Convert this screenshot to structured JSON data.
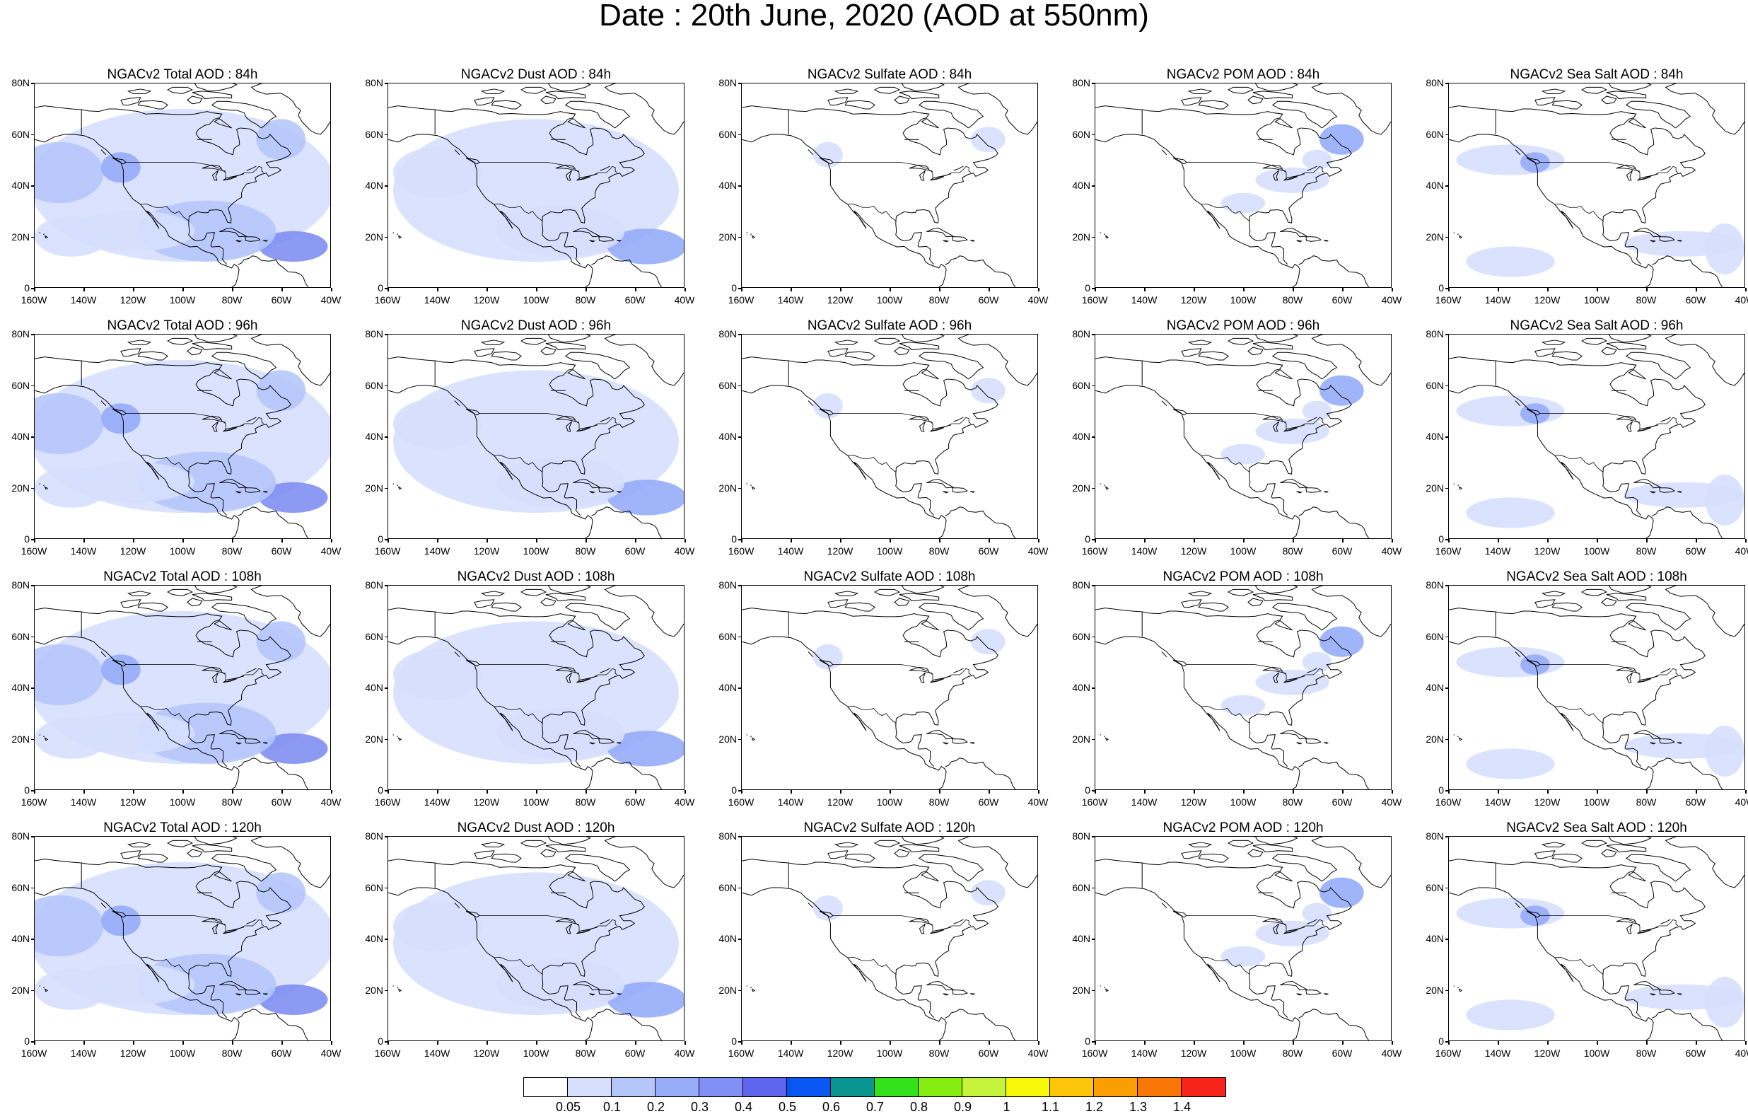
{
  "title": "Date : 20th June, 2020 (AOD at 550nm)",
  "rows": [
    {
      "panels": [
        {
          "title": "NGACv2 Total AOD : 84h",
          "species": "total"
        },
        {
          "title": "NGACv2 Dust AOD : 84h",
          "species": "dust"
        },
        {
          "title": "NGACv2 Sulfate AOD : 84h",
          "species": "sulfate"
        },
        {
          "title": "NGACv2 POM AOD : 84h",
          "species": "pom"
        },
        {
          "title": "NGACv2 Sea Salt AOD : 84h",
          "species": "seasalt"
        }
      ]
    },
    {
      "panels": [
        {
          "title": "NGACv2 Total AOD : 96h",
          "species": "total"
        },
        {
          "title": "NGACv2 Dust AOD : 96h",
          "species": "dust"
        },
        {
          "title": "NGACv2 Sulfate AOD : 96h",
          "species": "sulfate"
        },
        {
          "title": "NGACv2 POM AOD : 96h",
          "species": "pom"
        },
        {
          "title": "NGACv2 Sea Salt AOD : 96h",
          "species": "seasalt"
        }
      ]
    },
    {
      "panels": [
        {
          "title": "NGACv2 Total AOD : 108h",
          "species": "total"
        },
        {
          "title": "NGACv2 Dust AOD : 108h",
          "species": "dust"
        },
        {
          "title": "NGACv2 Sulfate AOD : 108h",
          "species": "sulfate"
        },
        {
          "title": "NGACv2 POM AOD : 108h",
          "species": "pom"
        },
        {
          "title": "NGACv2 Sea Salt AOD : 108h",
          "species": "seasalt"
        }
      ]
    },
    {
      "panels": [
        {
          "title": "NGACv2 Total AOD : 120h",
          "species": "total"
        },
        {
          "title": "NGACv2 Dust AOD : 120h",
          "species": "dust"
        },
        {
          "title": "NGACv2 Sulfate AOD : 120h",
          "species": "sulfate"
        },
        {
          "title": "NGACv2 POM AOD : 120h",
          "species": "pom"
        },
        {
          "title": "NGACv2 Sea Salt  AOD : 120h",
          "species": "seasalt"
        }
      ]
    }
  ],
  "y_ticks": [
    "80N",
    "60N",
    "40N",
    "20N",
    "0"
  ],
  "x_ticks": [
    "160W",
    "140W",
    "120W",
    "100W",
    "80W",
    "60W",
    "40W"
  ],
  "map_extent": {
    "lon": [
      -160,
      -40
    ],
    "lat": [
      0,
      80
    ]
  },
  "colorbar": {
    "labels": [
      "0.05",
      "0.1",
      "0.2",
      "0.3",
      "0.4",
      "0.5",
      "0.6",
      "0.7",
      "0.8",
      "0.9",
      "1",
      "1.1",
      "1.2",
      "1.3",
      "1.4"
    ],
    "colors": [
      "#ffffff",
      "#d6dffd",
      "#b5c6fb",
      "#96acf9",
      "#7f8ff3",
      "#5e64eb",
      "#0a56f2",
      "#0a9590",
      "#33e21c",
      "#85ee10",
      "#c4f53b",
      "#f8f80a",
      "#fcc508",
      "#fb9e03",
      "#f87705",
      "#f6241a"
    ]
  }
}
